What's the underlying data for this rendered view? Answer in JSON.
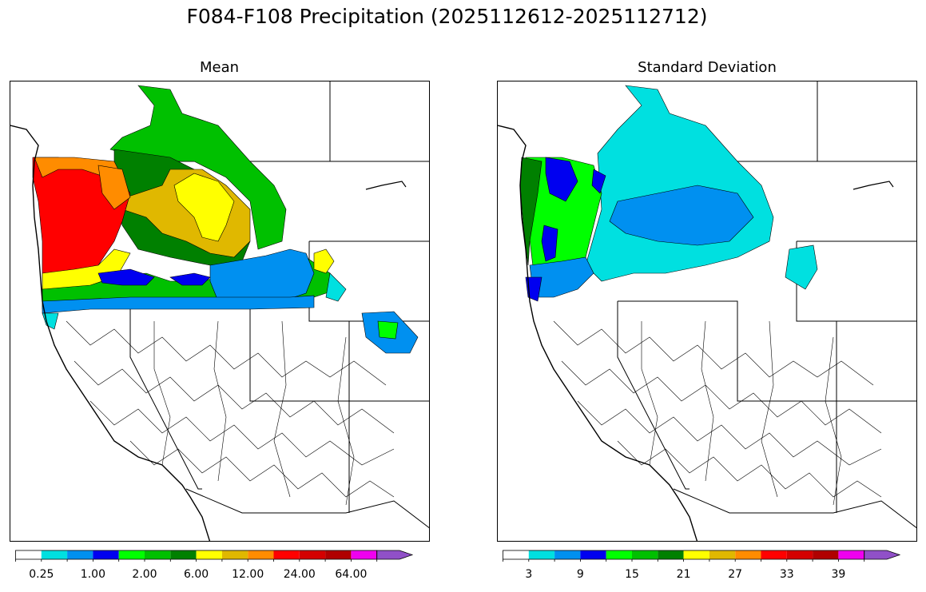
{
  "figure": {
    "title": "F084-F108 Precipitation (2025112612-2025112712)"
  },
  "panels": {
    "mean": {
      "title": "Mean"
    },
    "std": {
      "title": "Standard Deviation"
    }
  },
  "colorbar_colors": [
    "#ffffff",
    "#00e0e0",
    "#0090f0",
    "#0000f0",
    "#00ff00",
    "#00c000",
    "#008000",
    "#ffff00",
    "#e0b800",
    "#ff8c00",
    "#ff0000",
    "#d40000",
    "#b00000",
    "#f000f0",
    "#9050c8"
  ],
  "colorbars": {
    "mean": {
      "tick_labels": [
        "0.25",
        "1.00",
        "2.00",
        "6.00",
        "12.00",
        "24.00",
        "64.00"
      ]
    },
    "std": {
      "tick_labels": [
        "3",
        "9",
        "15",
        "21",
        "27",
        "33",
        "39"
      ]
    }
  }
}
